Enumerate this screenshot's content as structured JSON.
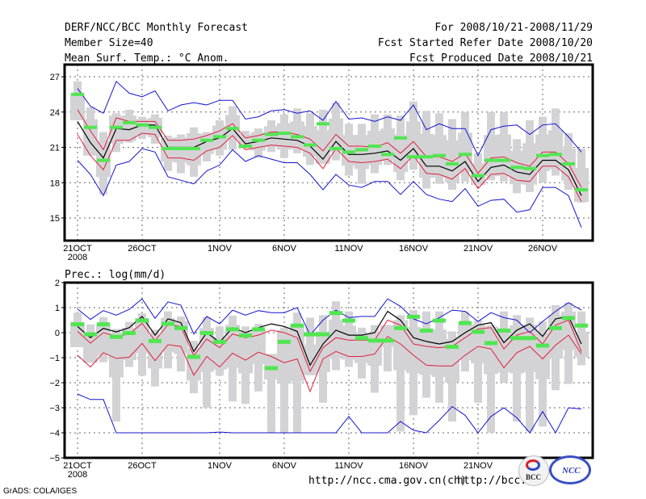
{
  "header": {
    "left": [
      "DERF/NCC/BCC Monthly Forecast",
      "Member Size=40",
      "Mean Surf. Temp.: °C Anom."
    ],
    "right": [
      "For 2008/10/21-2008/11/29",
      "Fcst Started Refer Date 2008/10/20",
      "Fcst Produced Date 2008/10/21"
    ]
  },
  "footer": {
    "credit": "GrADS: COLA/IGES",
    "url_ncc": "http://ncc.cma.gov.cn(ch)",
    "url_bcc": "http://bcc.c",
    "logo_bcc": "BCC",
    "logo_ncc": "NCC"
  },
  "colors": {
    "mean": "#000000",
    "inner_band": "#e0203c",
    "outer_band": "#1414d2",
    "observed_marker": "#50e650",
    "spread_box": "#d3d3d6",
    "grid": "#666666"
  },
  "chart_data": [
    {
      "type": "line",
      "title": "Mean Surf. Temp.: °C Anom.",
      "xlabel": "",
      "ylabel": "",
      "x_tick_labels": [
        "21OCT\n2008",
        "26OCT",
        "1NOV",
        "6NOV",
        "11NOV",
        "16NOV",
        "21NOV",
        "26NOV"
      ],
      "x_tick_day_index": [
        0,
        5,
        11,
        16,
        21,
        26,
        31,
        36
      ],
      "y_ticks": [
        15,
        18,
        21,
        24,
        27
      ],
      "ylim": [
        12.9,
        28.0
      ],
      "grid": true,
      "days": 40,
      "series": [
        {
          "name": "ensemble_mean",
          "values": [
            23.2,
            21.4,
            20.1,
            22.6,
            22.5,
            22.9,
            22.9,
            21.0,
            21.0,
            21.0,
            21.5,
            21.8,
            22.6,
            21.3,
            21.5,
            21.8,
            21.7,
            21.6,
            21.1,
            20.0,
            21.5,
            20.4,
            20.4,
            20.5,
            20.7,
            19.9,
            20.9,
            19.4,
            19.4,
            19.0,
            19.8,
            18.1,
            19.3,
            19.5,
            18.9,
            18.7,
            19.9,
            19.9,
            19.1,
            16.9
          ]
        },
        {
          "name": "inner_upper",
          "values": [
            24.2,
            22.4,
            20.8,
            23.5,
            23.2,
            23.2,
            23.2,
            21.6,
            21.6,
            21.7,
            22.0,
            22.4,
            23.0,
            21.8,
            22.0,
            22.3,
            22.3,
            22.1,
            21.7,
            20.7,
            22.1,
            21.1,
            21.1,
            21.0,
            21.4,
            20.5,
            21.5,
            20.2,
            20.2,
            19.8,
            20.5,
            18.8,
            20.1,
            20.2,
            19.7,
            19.4,
            20.6,
            20.6,
            19.6,
            17.6
          ]
        },
        {
          "name": "inner_lower",
          "values": [
            22.1,
            20.3,
            19.1,
            21.6,
            21.6,
            22.2,
            22.1,
            20.1,
            20.1,
            19.9,
            20.7,
            21.0,
            22.0,
            20.8,
            21.0,
            21.2,
            21.1,
            21.0,
            20.5,
            19.2,
            20.9,
            19.8,
            19.7,
            19.8,
            20.0,
            19.2,
            20.3,
            18.8,
            18.7,
            18.3,
            19.2,
            17.5,
            18.7,
            18.8,
            18.2,
            18.1,
            19.4,
            19.4,
            18.5,
            16.4
          ]
        },
        {
          "name": "outer_upper",
          "values": [
            26.0,
            24.5,
            23.9,
            26.6,
            25.6,
            25.3,
            25.8,
            24.1,
            24.6,
            24.8,
            24.6,
            25.0,
            25.0,
            23.4,
            23.6,
            24.1,
            24.2,
            23.9,
            24.1,
            23.3,
            24.9,
            23.4,
            23.5,
            23.2,
            23.6,
            23.3,
            24.6,
            22.5,
            23.0,
            22.6,
            22.6,
            20.3,
            22.5,
            22.8,
            22.9,
            22.1,
            22.9,
            23.0,
            21.9,
            20.6
          ]
        },
        {
          "name": "outer_lower",
          "values": [
            19.9,
            18.7,
            16.9,
            19.5,
            19.8,
            20.9,
            20.6,
            18.5,
            18.2,
            17.9,
            19.0,
            19.5,
            20.8,
            19.8,
            20.3,
            20.0,
            19.7,
            19.7,
            18.7,
            17.4,
            18.7,
            17.8,
            17.6,
            18.1,
            18.1,
            17.0,
            18.1,
            17.0,
            16.6,
            16.4,
            17.5,
            16.0,
            16.5,
            16.6,
            15.5,
            15.7,
            17.6,
            17.6,
            16.9,
            14.2
          ]
        },
        {
          "name": "observed_marker",
          "values": [
            25.5,
            22.7,
            19.9,
            22.7,
            23.1,
            22.9,
            22.7,
            20.9,
            20.9,
            20.9,
            21.6,
            21.9,
            22.6,
            21.1,
            21.6,
            22.1,
            22.2,
            21.9,
            21.2,
            23.0,
            20.9,
            20.6,
            20.8,
            21.1,
            20.4,
            21.8,
            20.2,
            20.2,
            20.3,
            19.6,
            20.4,
            18.6,
            19.9,
            19.9,
            19.3,
            19.2,
            20.3,
            20.4,
            19.6,
            17.4
          ]
        },
        {
          "name": "spread_max",
          "values": [
            26.6,
            24.4,
            22.3,
            23.9,
            24.2,
            23.6,
            23.8,
            22.0,
            22.1,
            22.7,
            22.3,
            23.3,
            24.5,
            22.4,
            22.6,
            23.3,
            23.8,
            24.3,
            23.9,
            24.2,
            24.8,
            23.0,
            23.0,
            23.8,
            23.8,
            23.7,
            24.9,
            24.1,
            23.9,
            23.4,
            24.0,
            20.5,
            24.0,
            24.0,
            21.7,
            23.3,
            23.6,
            24.3,
            22.2,
            20.9
          ]
        },
        {
          "name": "spread_min",
          "values": [
            23.3,
            20.3,
            17.0,
            20.6,
            21.4,
            21.7,
            21.3,
            19.0,
            18.8,
            18.5,
            19.8,
            20.3,
            20.8,
            20.9,
            20.1,
            20.6,
            20.1,
            20.5,
            19.5,
            19.6,
            19.9,
            18.6,
            17.9,
            18.8,
            19.5,
            18.2,
            19.1,
            17.5,
            17.9,
            17.4,
            18.1,
            17.8,
            18.2,
            18.1,
            17.1,
            17.2,
            18.0,
            18.6,
            17.4,
            16.3
          ]
        }
      ]
    },
    {
      "type": "line",
      "title": "Prec.: log(mm/d)",
      "xlabel": "",
      "ylabel": "",
      "x_tick_labels": [
        "21OCT\n2008",
        "26OCT",
        "1NOV",
        "6NOV",
        "11NOV",
        "16NOV",
        "21NOV"
      ],
      "x_tick_day_index": [
        0,
        5,
        11,
        16,
        21,
        26,
        31
      ],
      "y_ticks": [
        -5,
        -4,
        -3,
        -2,
        -1,
        0,
        1,
        2
      ],
      "ylim": [
        -5,
        2
      ],
      "grid": true,
      "days": 40,
      "series": [
        {
          "name": "ensemble_mean",
          "values": [
            0.25,
            -0.2,
            0.17,
            0.03,
            0.2,
            0.65,
            -0.1,
            0.55,
            0.4,
            -0.75,
            0.0,
            -0.38,
            0.2,
            0.0,
            0.2,
            0.35,
            0.25,
            0.05,
            -1.3,
            -0.45,
            0.1,
            -0.1,
            -0.1,
            0.0,
            0.85,
            0.5,
            -0.2,
            -0.35,
            -0.45,
            -0.35,
            0.0,
            0.3,
            0.4,
            -0.4,
            0.1,
            0.35,
            -0.15,
            0.55,
            0.65,
            -0.45
          ]
        },
        {
          "name": "inner_upper",
          "values": [
            0.05,
            -0.42,
            0.0,
            -0.15,
            -0.05,
            0.37,
            -0.32,
            0.32,
            0.25,
            -0.92,
            -0.25,
            -0.6,
            -0.05,
            -0.2,
            -0.1,
            0.1,
            0.0,
            -0.2,
            -1.55,
            -0.6,
            -0.2,
            -0.3,
            -0.3,
            -0.3,
            0.5,
            0.3,
            -0.45,
            -0.55,
            -0.6,
            -0.55,
            -0.2,
            0.15,
            0.2,
            -0.65,
            -0.1,
            0.05,
            -0.45,
            0.3,
            0.5,
            -0.75
          ]
        },
        {
          "name": "inner_lower",
          "values": [
            -0.9,
            -1.37,
            -0.8,
            -1.03,
            -0.98,
            -0.43,
            -1.12,
            -0.48,
            -0.55,
            -1.7,
            -0.95,
            -1.37,
            -0.82,
            -1.1,
            -0.78,
            -0.95,
            -1.2,
            -1.05,
            -2.35,
            -1.05,
            -0.75,
            -0.95,
            -0.95,
            -0.85,
            -0.15,
            -0.45,
            -0.9,
            -1.3,
            -1.33,
            -1.33,
            -0.9,
            -0.55,
            -0.65,
            -1.4,
            -0.8,
            -0.55,
            -1.05,
            -0.5,
            -0.1,
            -0.85
          ]
        },
        {
          "name": "outer_upper",
          "values": [
            0.95,
            0.53,
            0.88,
            0.7,
            0.93,
            1.35,
            0.57,
            1.23,
            1.1,
            -0.05,
            0.65,
            0.35,
            0.9,
            0.7,
            0.88,
            0.8,
            0.8,
            1.0,
            -0.1,
            0.5,
            0.9,
            0.6,
            0.65,
            0.65,
            1.35,
            1.05,
            0.55,
            0.35,
            0.6,
            0.9,
            0.85,
            0.45,
            0.8,
            0.6,
            0.5,
            0.0,
            0.45,
            0.85,
            1.2,
            0.9
          ]
        },
        {
          "name": "outer_lower",
          "values": [
            -2.45,
            -2.67,
            -2.67,
            -4.0,
            -4.0,
            -4.0,
            -4.0,
            -4.0,
            -4.0,
            -4.0,
            -4.0,
            -3.97,
            -4.0,
            -4.0,
            -4.0,
            -4.0,
            -4.0,
            -4.0,
            -4.0,
            -4.0,
            -4.0,
            -3.35,
            -4.0,
            -4.0,
            -4.0,
            -3.55,
            -3.9,
            -4.0,
            -3.5,
            -2.95,
            -3.3,
            -4.0,
            -3.35,
            -3.0,
            -3.4,
            -4.0,
            -3.15,
            -4.0,
            -3.0,
            -3.05
          ]
        },
        {
          "name": "observed_marker",
          "values": [
            0.35,
            -0.05,
            0.35,
            -0.15,
            0.0,
            0.5,
            -0.32,
            0.37,
            0.2,
            -0.95,
            0.0,
            -0.35,
            0.15,
            -0.1,
            0.15,
            -1.4,
            -0.35,
            0.3,
            -0.05,
            -0.05,
            0.8,
            0.5,
            -0.2,
            -0.3,
            -0.3,
            0.2,
            0.65,
            0.1,
            0.5,
            -0.55,
            0.4,
            0.05,
            -0.4,
            0.1,
            -0.2,
            -0.2,
            -0.5,
            0.2,
            0.6,
            0.3
          ]
        },
        {
          "name": "spread_max",
          "values": [
            0.8,
            0.33,
            0.62,
            0.15,
            0.43,
            0.78,
            0.12,
            0.85,
            0.65,
            -0.33,
            0.62,
            0.25,
            0.68,
            0.25,
            0.35,
            -0.85,
            0.2,
            0.8,
            0.6,
            0.7,
            1.25,
            0.85,
            0.2,
            0.3,
            0.3,
            0.7,
            0.9,
            0.85,
            0.85,
            0.05,
            0.85,
            0.5,
            0.3,
            0.85,
            0.7,
            0.6,
            0.45,
            1.1,
            1.2,
            0.85
          ]
        },
        {
          "name": "spread_min",
          "values": [
            -0.58,
            -1.2,
            -1.18,
            -3.55,
            -1.37,
            -1.72,
            -2.15,
            -1.43,
            -1.55,
            -2.42,
            -3.0,
            -1.72,
            -2.75,
            -2.85,
            -2.35,
            -4.0,
            -4.0,
            -4.0,
            -1.7,
            -2.8,
            -1.5,
            -1.37,
            -1.83,
            -2.4,
            -1.55,
            -3.95,
            -3.3,
            -2.6,
            -2.8,
            -3.55,
            -1.55,
            -2.8,
            -4.0,
            -2.0,
            -3.55,
            -3.95,
            -3.75,
            -2.3,
            -2.05,
            -1.3
          ]
        }
      ]
    }
  ]
}
